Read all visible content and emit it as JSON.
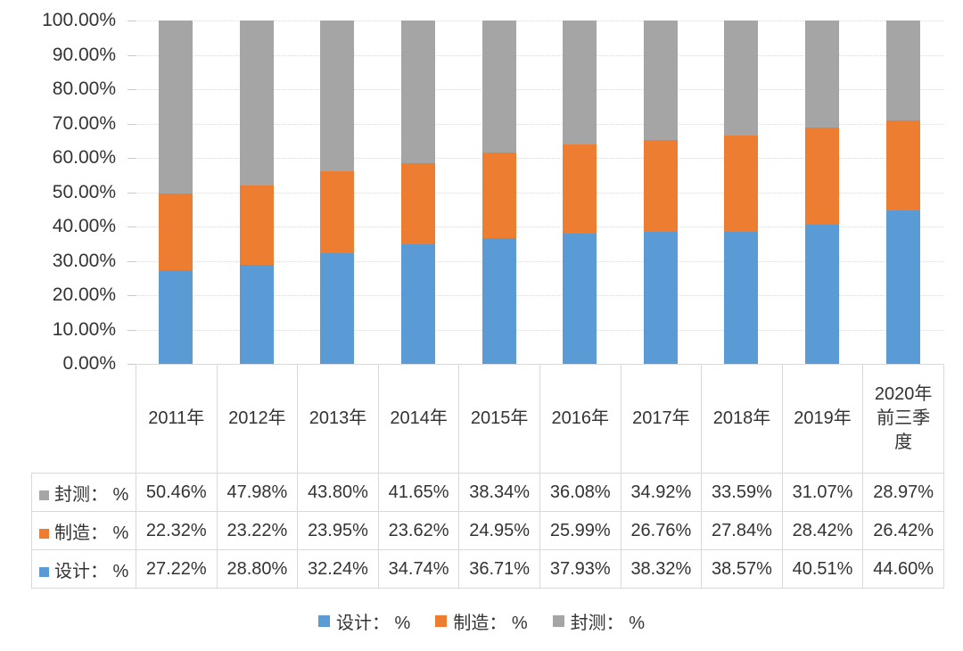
{
  "chart_data": {
    "type": "bar",
    "variant": "100-percent-stacked-column-with-data-table",
    "categories": [
      "2011年",
      "2012年",
      "2013年",
      "2014年",
      "2015年",
      "2016年",
      "2017年",
      "2018年",
      "2019年",
      "2020年前三季度"
    ],
    "series": [
      {
        "name": "设计： %",
        "color": "#5B9BD5",
        "values": [
          27.22,
          28.8,
          32.24,
          34.74,
          36.71,
          37.93,
          38.32,
          38.57,
          40.51,
          44.6
        ]
      },
      {
        "name": "制造： %",
        "color": "#ED7D31",
        "values": [
          22.32,
          23.22,
          23.95,
          23.62,
          24.95,
          25.99,
          26.76,
          27.84,
          28.42,
          26.42
        ]
      },
      {
        "name": "封测： %",
        "color": "#A5A5A5",
        "values": [
          50.46,
          47.98,
          43.8,
          41.65,
          38.34,
          36.08,
          34.92,
          33.59,
          31.07,
          28.97
        ]
      }
    ],
    "ylim": [
      0,
      100
    ],
    "ytick_labels": [
      "100.00%",
      "90.00%",
      "80.00%",
      "70.00%",
      "60.00%",
      "50.00%",
      "40.00%",
      "30.00%",
      "20.00%",
      "10.00%",
      "0.00%"
    ],
    "grid": "horizontal",
    "legend_position": "bottom",
    "title": ""
  },
  "data_table": {
    "header": [
      "2011年",
      "2012年",
      "2013年",
      "2014年",
      "2015年",
      "2016年",
      "2017年",
      "2018年",
      "2019年",
      "2020年前三季度"
    ],
    "rows": [
      {
        "label": "封测： %",
        "swatch_color": "#A5A5A5",
        "values": [
          "50.46%",
          "47.98%",
          "43.80%",
          "41.65%",
          "38.34%",
          "36.08%",
          "34.92%",
          "33.59%",
          "31.07%",
          "28.97%"
        ]
      },
      {
        "label": "制造： %",
        "swatch_color": "#ED7D31",
        "values": [
          "22.32%",
          "23.22%",
          "23.95%",
          "23.62%",
          "24.95%",
          "25.99%",
          "26.76%",
          "27.84%",
          "28.42%",
          "26.42%"
        ]
      },
      {
        "label": "设计： %",
        "swatch_color": "#5B9BD5",
        "values": [
          "27.22%",
          "28.80%",
          "32.24%",
          "34.74%",
          "36.71%",
          "37.93%",
          "38.32%",
          "38.57%",
          "40.51%",
          "44.60%"
        ]
      }
    ]
  },
  "legend": {
    "items": [
      {
        "label": "设计： %",
        "color": "#5B9BD5"
      },
      {
        "label": "制造： %",
        "color": "#ED7D31"
      },
      {
        "label": "封测： %",
        "color": "#A5A5A5"
      }
    ]
  },
  "palette": {
    "design_blue": "#5B9BD5",
    "manufacture_orange": "#ED7D31",
    "test_gray": "#A5A5A5",
    "gridline": "#D9D9D9",
    "table_border": "#D9D9D9",
    "text": "#333333",
    "background": "#FFFFFF"
  }
}
